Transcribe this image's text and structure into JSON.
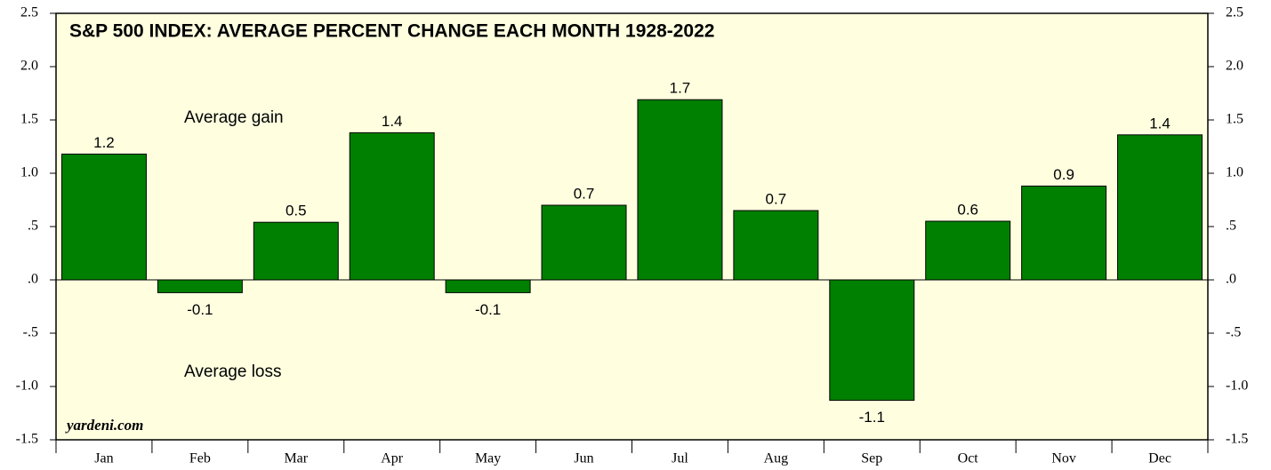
{
  "chart_data": {
    "type": "bar",
    "title": "S&P 500 INDEX: AVERAGE PERCENT CHANGE EACH MONTH 1928-2022",
    "annotations": [
      "Average gain",
      "Average loss"
    ],
    "source": "yardeni.com",
    "categories": [
      "Jan",
      "Feb",
      "Mar",
      "Apr",
      "May",
      "Jun",
      "Jul",
      "Aug",
      "Sep",
      "Oct",
      "Nov",
      "Dec"
    ],
    "values": [
      1.18,
      -0.12,
      0.54,
      1.38,
      -0.12,
      0.7,
      1.69,
      0.65,
      -1.13,
      0.55,
      0.88,
      1.36
    ],
    "value_labels": [
      "1.2",
      "-0.1",
      "0.5",
      "1.4",
      "-0.1",
      "0.7",
      "1.7",
      "0.7",
      "-1.1",
      "0.6",
      "0.9",
      "1.4"
    ],
    "color": "#008000",
    "background": "#ffffe0",
    "ylim": [
      -1.5,
      2.5
    ],
    "yticks": [
      -1.5,
      {
        "value": -1.0,
        "label": "-1.0"
      },
      {
        "value": -0.5,
        "label": "-.5"
      },
      {
        "value": 0,
        "label": ".0"
      },
      {
        "value": 0.5,
        "label": ".5"
      },
      {
        "value": 1.0,
        "label": "1.0"
      },
      1.5,
      {
        "value": 2.0,
        "label": "2.0"
      },
      2.5
    ]
  }
}
